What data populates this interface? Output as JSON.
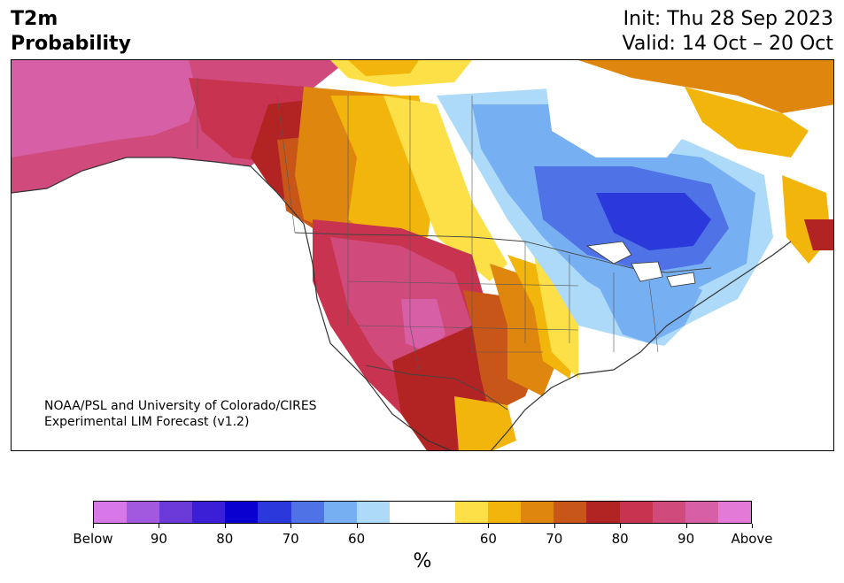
{
  "header": {
    "title_line1": "T2m",
    "title_line2": "Probability",
    "init": "Init: Thu 28 Sep 2023",
    "valid": "Valid: 14 Oct – 20 Oct"
  },
  "map": {
    "credit_line1": "NOAA/PSL and University of Colorado/CIRES",
    "credit_line2": "Experimental LIM Forecast (v1.2)",
    "palette": {
      "below_100": "#d877e8",
      "below_95": "#a259e0",
      "below_90": "#6c3ad8",
      "below_85": "#3a1fd6",
      "below_80": "#0a00d0",
      "below_75": "#2a38dc",
      "below_70": "#4f72e6",
      "below_65": "#76aff2",
      "below_60": "#aedaf9",
      "neutral": "#ffffff",
      "above_60": "#fde048",
      "above_65": "#f2b50c",
      "above_70": "#df860f",
      "above_75": "#c95619",
      "above_80": "#b22424",
      "above_85": "#c8334f",
      "above_90": "#d04a7b",
      "above_95": "#d65fa6",
      "above_100": "#e47ad7"
    }
  },
  "colorbar": {
    "unit": "%",
    "colors": [
      "#d877e8",
      "#a259e0",
      "#6c3ad8",
      "#3a1fd6",
      "#0a00d0",
      "#2a38dc",
      "#4f72e6",
      "#76aff2",
      "#aedaf9",
      "#ffffff",
      "#ffffff",
      "#fde048",
      "#f2b50c",
      "#df860f",
      "#c95619",
      "#b22424",
      "#c8334f",
      "#d04a7b",
      "#d65fa6",
      "#e47ad7"
    ],
    "ticks": [
      "Below",
      "90",
      "80",
      "70",
      "60",
      "60",
      "70",
      "80",
      "90",
      "Above"
    ]
  }
}
